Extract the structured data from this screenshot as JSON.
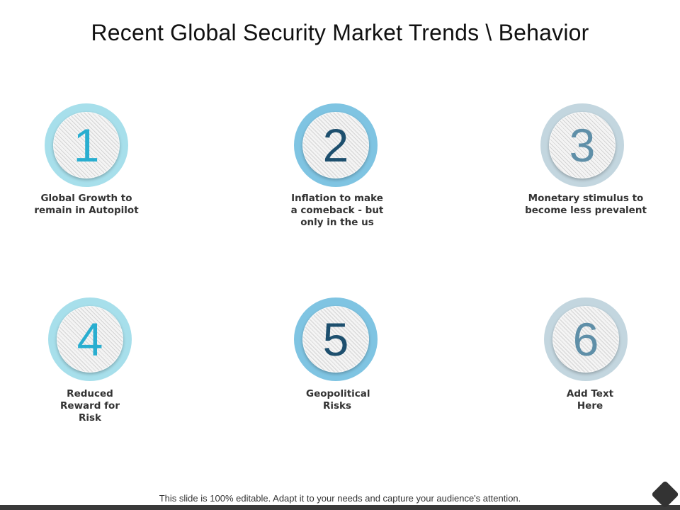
{
  "title": "Recent Global Security Market Trends \\ Behavior",
  "items": [
    {
      "number": "1",
      "label": "Global Growth to remain in Autopilot",
      "ring_color": "#a7dfeb",
      "number_color": "#29aed0"
    },
    {
      "number": "2",
      "label": "Inflation to make a comeback - but only in the us",
      "ring_color": "#7fc4e2",
      "number_color": "#1d4f6e"
    },
    {
      "number": "3",
      "label": "Monetary stimulus to become less prevalent",
      "ring_color": "#c3d6df",
      "number_color": "#5f8fa8"
    },
    {
      "number": "4",
      "label": "Reduced Reward for Risk",
      "ring_color": "#a7dfeb",
      "number_color": "#29aed0"
    },
    {
      "number": "5",
      "label": "Geopolitical Risks",
      "ring_color": "#7fc4e2",
      "number_color": "#1d4f6e"
    },
    {
      "number": "6",
      "label": "Add Text Here",
      "ring_color": "#c3d6df",
      "number_color": "#5f8fa8"
    }
  ],
  "footer": {
    "note": "This slide is 100% editable. Adapt it to your needs and capture your audience's attention."
  }
}
